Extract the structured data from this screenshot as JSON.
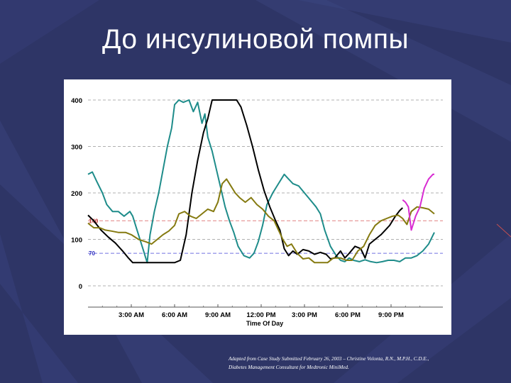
{
  "slide": {
    "title": "До инсулиновой помпы",
    "caption_line1": "Adapted from Case Study Submitted February 26, 2003 – Christine Volonta, R.N., M.P.H., C.D.E.,",
    "caption_line2": "Diabetes Management Consultant for Medtronic MiniMed."
  },
  "colors": {
    "background": "#2e3566",
    "teal": "#1e8c8a",
    "black": "#000000",
    "olive": "#857a10",
    "magenta": "#d82cd2",
    "upper_reference": "#e08080",
    "lower_reference": "#7070e0",
    "grid": "#b0b0b0"
  },
  "chart_data": {
    "type": "line",
    "xlabel": "Time Of Day",
    "ylabel": "",
    "xlim": [
      0,
      24
    ],
    "ylim": [
      0,
      400
    ],
    "yticks": [
      0,
      100,
      200,
      300,
      400
    ],
    "xticks": [
      {
        "x": 3,
        "label": "3:00 AM"
      },
      {
        "x": 6,
        "label": "6:00 AM"
      },
      {
        "x": 9,
        "label": "9:00 AM"
      },
      {
        "x": 12,
        "label": "12:00 PM"
      },
      {
        "x": 15,
        "label": "3:00 PM"
      },
      {
        "x": 18,
        "label": "6:00 PM"
      },
      {
        "x": 21,
        "label": "9:00 PM"
      }
    ],
    "grid": true,
    "reference_lines": [
      {
        "y": 140,
        "label": "140"
      },
      {
        "y": 70,
        "label": "70"
      }
    ],
    "series": [
      {
        "color": "#1e8c8a",
        "points": [
          [
            0,
            240
          ],
          [
            0.3,
            245
          ],
          [
            0.6,
            225
          ],
          [
            1,
            200
          ],
          [
            1.3,
            175
          ],
          [
            1.7,
            160
          ],
          [
            2.1,
            160
          ],
          [
            2.5,
            150
          ],
          [
            2.9,
            160
          ],
          [
            3.1,
            150
          ],
          [
            3.4,
            120
          ],
          [
            3.8,
            80
          ],
          [
            4.1,
            50
          ],
          [
            4.3,
            110
          ],
          [
            4.6,
            160
          ],
          [
            4.9,
            200
          ],
          [
            5.2,
            250
          ],
          [
            5.5,
            300
          ],
          [
            5.8,
            340
          ],
          [
            6,
            390
          ],
          [
            6.3,
            400
          ],
          [
            6.6,
            395
          ],
          [
            7,
            400
          ],
          [
            7.3,
            375
          ],
          [
            7.6,
            395
          ],
          [
            7.9,
            350
          ],
          [
            8.1,
            370
          ],
          [
            8.3,
            320
          ],
          [
            8.6,
            290
          ],
          [
            8.9,
            250
          ],
          [
            9.2,
            210
          ],
          [
            9.5,
            170
          ],
          [
            9.8,
            140
          ],
          [
            10.1,
            115
          ],
          [
            10.4,
            85
          ],
          [
            10.8,
            65
          ],
          [
            11.2,
            60
          ],
          [
            11.5,
            70
          ],
          [
            11.8,
            95
          ],
          [
            12.1,
            130
          ],
          [
            12.4,
            175
          ],
          [
            12.8,
            200
          ],
          [
            13.2,
            220
          ],
          [
            13.6,
            240
          ],
          [
            13.9,
            230
          ],
          [
            14.2,
            220
          ],
          [
            14.6,
            215
          ],
          [
            15,
            200
          ],
          [
            15.4,
            185
          ],
          [
            15.8,
            170
          ],
          [
            16.1,
            155
          ],
          [
            16.4,
            120
          ],
          [
            16.8,
            85
          ],
          [
            17.2,
            65
          ],
          [
            17.5,
            55
          ],
          [
            17.8,
            52
          ],
          [
            18.1,
            60
          ],
          [
            18.4,
            55
          ],
          [
            18.8,
            52
          ],
          [
            19.2,
            56
          ],
          [
            19.6,
            52
          ],
          [
            20,
            50
          ],
          [
            20.4,
            52
          ],
          [
            20.8,
            55
          ],
          [
            21.2,
            55
          ],
          [
            21.6,
            52
          ],
          [
            22,
            60
          ],
          [
            22.4,
            60
          ],
          [
            22.8,
            65
          ],
          [
            23.2,
            75
          ],
          [
            23.6,
            90
          ],
          [
            24,
            115
          ]
        ]
      },
      {
        "color": "#000000",
        "points": [
          [
            0,
            152
          ],
          [
            0.4,
            140
          ],
          [
            0.9,
            120
          ],
          [
            1.4,
            105
          ],
          [
            1.9,
            92
          ],
          [
            2.4,
            75
          ],
          [
            2.8,
            60
          ],
          [
            3.1,
            50
          ],
          [
            3.5,
            50
          ],
          [
            4,
            50
          ],
          [
            4.5,
            50
          ],
          [
            5,
            50
          ],
          [
            5.5,
            50
          ],
          [
            6,
            50
          ],
          [
            6.4,
            55
          ],
          [
            6.8,
            110
          ],
          [
            7.2,
            200
          ],
          [
            7.6,
            270
          ],
          [
            8,
            330
          ],
          [
            8.3,
            360
          ],
          [
            8.6,
            400
          ],
          [
            9,
            400
          ],
          [
            9.5,
            400
          ],
          [
            10,
            400
          ],
          [
            10.3,
            400
          ],
          [
            10.6,
            385
          ],
          [
            11,
            345
          ],
          [
            11.4,
            300
          ],
          [
            11.8,
            250
          ],
          [
            12.2,
            205
          ],
          [
            12.6,
            170
          ],
          [
            13,
            140
          ],
          [
            13.3,
            120
          ],
          [
            13.6,
            80
          ],
          [
            13.9,
            65
          ],
          [
            14.2,
            75
          ],
          [
            14.5,
            68
          ],
          [
            14.9,
            78
          ],
          [
            15.3,
            75
          ],
          [
            15.7,
            68
          ],
          [
            16.1,
            72
          ],
          [
            16.5,
            68
          ],
          [
            16.8,
            58
          ],
          [
            17.1,
            60
          ],
          [
            17.5,
            75
          ],
          [
            17.8,
            60
          ],
          [
            18.1,
            70
          ],
          [
            18.5,
            85
          ],
          [
            18.9,
            80
          ],
          [
            19.2,
            60
          ],
          [
            19.5,
            90
          ],
          [
            19.9,
            100
          ],
          [
            20.3,
            110
          ],
          [
            20.6,
            120
          ],
          [
            20.9,
            130
          ],
          [
            21.3,
            150
          ],
          [
            21.6,
            162
          ],
          [
            21.8,
            168
          ]
        ]
      },
      {
        "color": "#857a10",
        "points": [
          [
            0,
            135
          ],
          [
            0.4,
            125
          ],
          [
            0.8,
            125
          ],
          [
            1.2,
            120
          ],
          [
            1.6,
            118
          ],
          [
            2.1,
            115
          ],
          [
            2.6,
            115
          ],
          [
            3,
            110
          ],
          [
            3.5,
            100
          ],
          [
            4,
            95
          ],
          [
            4.4,
            90
          ],
          [
            4.8,
            100
          ],
          [
            5.2,
            110
          ],
          [
            5.6,
            118
          ],
          [
            6,
            130
          ],
          [
            6.3,
            155
          ],
          [
            6.7,
            160
          ],
          [
            7.1,
            150
          ],
          [
            7.5,
            145
          ],
          [
            7.9,
            155
          ],
          [
            8.3,
            165
          ],
          [
            8.7,
            160
          ],
          [
            9,
            180
          ],
          [
            9.3,
            220
          ],
          [
            9.6,
            230
          ],
          [
            9.9,
            215
          ],
          [
            10.2,
            200
          ],
          [
            10.5,
            190
          ],
          [
            10.9,
            180
          ],
          [
            11.3,
            190
          ],
          [
            11.7,
            175
          ],
          [
            12.1,
            165
          ],
          [
            12.5,
            150
          ],
          [
            12.9,
            140
          ],
          [
            13.2,
            120
          ],
          [
            13.5,
            100
          ],
          [
            13.8,
            85
          ],
          [
            14.1,
            90
          ],
          [
            14.5,
            70
          ],
          [
            14.9,
            58
          ],
          [
            15.3,
            60
          ],
          [
            15.7,
            50
          ],
          [
            16.1,
            50
          ],
          [
            16.6,
            50
          ],
          [
            17,
            60
          ],
          [
            17.5,
            60
          ],
          [
            17.9,
            55
          ],
          [
            18.3,
            55
          ],
          [
            18.7,
            75
          ],
          [
            19.1,
            85
          ],
          [
            19.5,
            110
          ],
          [
            19.9,
            130
          ],
          [
            20.3,
            140
          ],
          [
            20.7,
            145
          ],
          [
            21.1,
            150
          ],
          [
            21.5,
            152
          ],
          [
            21.8,
            145
          ],
          [
            22.1,
            132
          ],
          [
            22.4,
            160
          ],
          [
            22.8,
            170
          ],
          [
            23.2,
            168
          ],
          [
            23.6,
            165
          ],
          [
            24,
            155
          ]
        ]
      },
      {
        "color": "#d82cd2",
        "points": [
          [
            21.8,
            185
          ],
          [
            22,
            180
          ],
          [
            22.2,
            170
          ],
          [
            22.4,
            120
          ],
          [
            22.7,
            150
          ],
          [
            23,
            170
          ],
          [
            23.3,
            210
          ],
          [
            23.6,
            230
          ],
          [
            23.9,
            240
          ],
          [
            24,
            240
          ]
        ]
      }
    ]
  }
}
